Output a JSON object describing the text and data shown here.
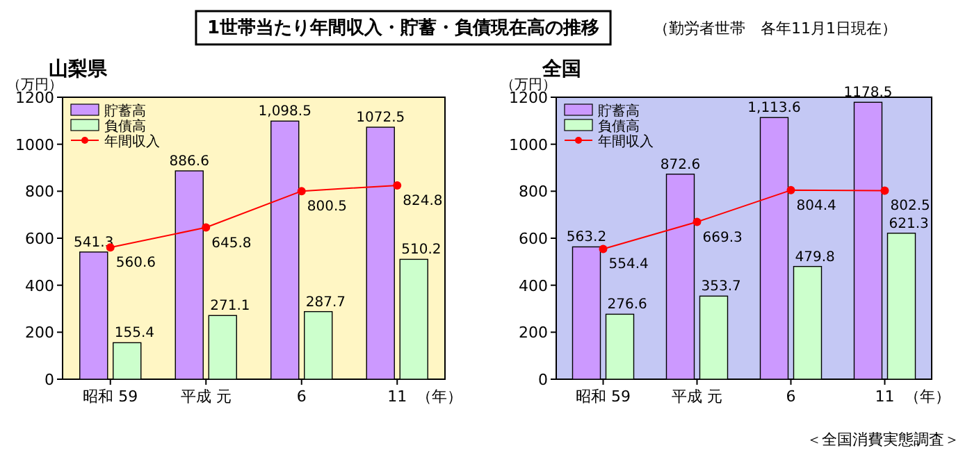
{
  "chart_data": [
    {
      "type": "bar",
      "title": "山梨県",
      "ylabel": "（万円）",
      "xlabel": "（年）",
      "categories": [
        "昭和 59",
        "平成 元",
        "6",
        "11"
      ],
      "ylim": [
        0,
        1200
      ],
      "yticks": [
        0,
        200,
        400,
        600,
        800,
        1000,
        1200
      ],
      "legend": "top left",
      "grid": false,
      "annotations": [
        "1世帯当たり年間収入・貯蓄・負債現在高の推移",
        "（勤労者世帯　各年11月1日現在）"
      ],
      "series": [
        {
          "name": "貯蓄高",
          "color": "#cc99ff",
          "values": [
            541.3,
            886.6,
            1098.5,
            1072.5
          ],
          "value_labels": [
            "541.3",
            "886.6",
            "1,098.5",
            "1072.5"
          ]
        },
        {
          "name": "負債高",
          "color": "#ccffcc",
          "values": [
            155.4,
            271.1,
            287.7,
            510.2
          ],
          "value_labels": [
            "155.4",
            "271.1",
            "287.7",
            "510.2"
          ]
        },
        {
          "name": "年間収入",
          "type": "line",
          "color": "#ff0000",
          "marker": "circle",
          "values": [
            560.6,
            645.8,
            800.5,
            824.8
          ],
          "value_labels": [
            "560.6",
            "645.8",
            "800.5",
            "824.8"
          ]
        }
      ]
    },
    {
      "type": "bar",
      "title": "全国",
      "ylabel": "（万円）",
      "xlabel": "（年）",
      "categories": [
        "昭和 59",
        "平成 元",
        "6",
        "11"
      ],
      "ylim": [
        0,
        1200
      ],
      "yticks": [
        0,
        200,
        400,
        600,
        800,
        1000,
        1200
      ],
      "legend": "top left",
      "grid": false,
      "annotations": [
        "＜全国消費実態調査＞"
      ],
      "series": [
        {
          "name": "貯蓄高",
          "color": "#cc99ff",
          "values": [
            563.2,
            872.6,
            1113.6,
            1178.5
          ],
          "value_labels": [
            "563.2",
            "872.6",
            "1,113.6",
            "1178.5"
          ]
        },
        {
          "name": "負債高",
          "color": "#ccffcc",
          "values": [
            276.6,
            353.7,
            479.8,
            621.3
          ],
          "value_labels": [
            "276.6",
            "353.7",
            "479.8",
            "621.3"
          ]
        },
        {
          "name": "年間収入",
          "type": "line",
          "color": "#ff0000",
          "marker": "circle",
          "values": [
            554.4,
            669.3,
            804.4,
            802.5
          ],
          "value_labels": [
            "554.4",
            "669.3",
            "804.4",
            "802.5"
          ]
        }
      ]
    }
  ]
}
